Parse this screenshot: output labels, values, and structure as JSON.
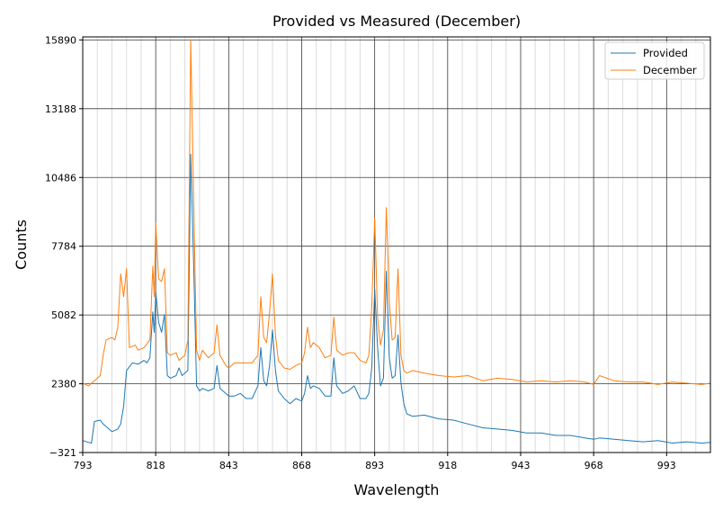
{
  "chart_data": {
    "type": "line",
    "title": "Provided vs Measured (December)",
    "xlabel": "Wavelength",
    "ylabel": "Counts",
    "xlim": [
      793,
      1008
    ],
    "ylim": [
      -321,
      16010
    ],
    "xticks": [
      793,
      818,
      843,
      868,
      893,
      918,
      943,
      968,
      993
    ],
    "yticks": [
      -321,
      2380,
      5082,
      7784,
      10486,
      13188,
      15890
    ],
    "xtick_labels": [
      "793",
      "818",
      "843",
      "868",
      "893",
      "918",
      "943",
      "968",
      "993"
    ],
    "ytick_labels": [
      "−321",
      "2380",
      "5082",
      "7784",
      "10486",
      "13188",
      "15890"
    ],
    "grid": true,
    "legend_position": "top-right",
    "series": [
      {
        "name": "Provided",
        "color": "#1f77b4",
        "points": [
          [
            793,
            150
          ],
          [
            795,
            80
          ],
          [
            796,
            50
          ],
          [
            797,
            900
          ],
          [
            799,
            950
          ],
          [
            800,
            800
          ],
          [
            801,
            700
          ],
          [
            803,
            500
          ],
          [
            805,
            600
          ],
          [
            806,
            800
          ],
          [
            807,
            1500
          ],
          [
            808,
            2900
          ],
          [
            810,
            3200
          ],
          [
            812,
            3150
          ],
          [
            814,
            3300
          ],
          [
            815,
            3200
          ],
          [
            816,
            3400
          ],
          [
            817,
            5200
          ],
          [
            817.5,
            4400
          ],
          [
            818,
            6000
          ],
          [
            819,
            4800
          ],
          [
            820,
            4400
          ],
          [
            821,
            5100
          ],
          [
            822,
            2700
          ],
          [
            823,
            2600
          ],
          [
            825,
            2700
          ],
          [
            826,
            3000
          ],
          [
            827,
            2700
          ],
          [
            829,
            2900
          ],
          [
            830,
            11400
          ],
          [
            831,
            7000
          ],
          [
            832,
            2300
          ],
          [
            833,
            2100
          ],
          [
            834,
            2200
          ],
          [
            836,
            2100
          ],
          [
            838,
            2200
          ],
          [
            839,
            3100
          ],
          [
            840,
            2200
          ],
          [
            842,
            2000
          ],
          [
            843,
            1900
          ],
          [
            845,
            1900
          ],
          [
            847,
            2000
          ],
          [
            849,
            1800
          ],
          [
            851,
            1800
          ],
          [
            853,
            2300
          ],
          [
            854,
            3800
          ],
          [
            855,
            2500
          ],
          [
            856,
            2300
          ],
          [
            857,
            3100
          ],
          [
            858,
            4500
          ],
          [
            859,
            2900
          ],
          [
            860,
            2100
          ],
          [
            862,
            1800
          ],
          [
            864,
            1600
          ],
          [
            866,
            1800
          ],
          [
            868,
            1700
          ],
          [
            869,
            2000
          ],
          [
            870,
            2700
          ],
          [
            871,
            2200
          ],
          [
            872,
            2300
          ],
          [
            874,
            2200
          ],
          [
            876,
            1900
          ],
          [
            878,
            1900
          ],
          [
            879,
            3400
          ],
          [
            880,
            2300
          ],
          [
            882,
            2000
          ],
          [
            884,
            2100
          ],
          [
            886,
            2300
          ],
          [
            888,
            1800
          ],
          [
            890,
            1800
          ],
          [
            891,
            2000
          ],
          [
            892,
            3000
          ],
          [
            893,
            6100
          ],
          [
            894,
            3800
          ],
          [
            895,
            2300
          ],
          [
            896,
            2600
          ],
          [
            897,
            6800
          ],
          [
            898,
            3400
          ],
          [
            899,
            2600
          ],
          [
            900,
            2700
          ],
          [
            901,
            4300
          ],
          [
            902,
            2400
          ],
          [
            903,
            1600
          ],
          [
            904,
            1200
          ],
          [
            906,
            1100
          ],
          [
            910,
            1150
          ],
          [
            915,
            1000
          ],
          [
            920,
            950
          ],
          [
            925,
            800
          ],
          [
            930,
            650
          ],
          [
            935,
            600
          ],
          [
            940,
            550
          ],
          [
            945,
            450
          ],
          [
            950,
            450
          ],
          [
            955,
            350
          ],
          [
            960,
            350
          ],
          [
            965,
            250
          ],
          [
            968,
            200
          ],
          [
            970,
            250
          ],
          [
            975,
            200
          ],
          [
            980,
            150
          ],
          [
            985,
            100
          ],
          [
            990,
            150
          ],
          [
            995,
            50
          ],
          [
            1000,
            100
          ],
          [
            1005,
            50
          ],
          [
            1008,
            80
          ]
        ]
      },
      {
        "name": "December",
        "color": "#ff7f0e",
        "points": [
          [
            793,
            2400
          ],
          [
            795,
            2300
          ],
          [
            797,
            2500
          ],
          [
            799,
            2700
          ],
          [
            800,
            3500
          ],
          [
            801,
            4100
          ],
          [
            803,
            4200
          ],
          [
            804,
            4100
          ],
          [
            805,
            4600
          ],
          [
            806,
            6700
          ],
          [
            807,
            5800
          ],
          [
            808,
            6900
          ],
          [
            809,
            3800
          ],
          [
            811,
            3900
          ],
          [
            812,
            3700
          ],
          [
            814,
            3800
          ],
          [
            816,
            4100
          ],
          [
            817,
            7000
          ],
          [
            817.5,
            5800
          ],
          [
            818,
            8700
          ],
          [
            819,
            6500
          ],
          [
            820,
            6400
          ],
          [
            821,
            6900
          ],
          [
            822,
            3600
          ],
          [
            823,
            3500
          ],
          [
            825,
            3600
          ],
          [
            826,
            3300
          ],
          [
            828,
            3500
          ],
          [
            829,
            4100
          ],
          [
            830,
            15900
          ],
          [
            831,
            9500
          ],
          [
            832,
            3700
          ],
          [
            833,
            3300
          ],
          [
            834,
            3700
          ],
          [
            836,
            3400
          ],
          [
            838,
            3600
          ],
          [
            839,
            4700
          ],
          [
            840,
            3500
          ],
          [
            842,
            3100
          ],
          [
            843,
            3000
          ],
          [
            845,
            3200
          ],
          [
            847,
            3200
          ],
          [
            849,
            3200
          ],
          [
            851,
            3200
          ],
          [
            853,
            3500
          ],
          [
            854,
            5800
          ],
          [
            855,
            4200
          ],
          [
            856,
            4000
          ],
          [
            857,
            5200
          ],
          [
            858,
            6700
          ],
          [
            859,
            4300
          ],
          [
            860,
            3300
          ],
          [
            862,
            3000
          ],
          [
            864,
            2950
          ],
          [
            866,
            3100
          ],
          [
            868,
            3200
          ],
          [
            869,
            3600
          ],
          [
            870,
            4600
          ],
          [
            871,
            3800
          ],
          [
            872,
            4000
          ],
          [
            874,
            3800
          ],
          [
            876,
            3400
          ],
          [
            878,
            3500
          ],
          [
            879,
            5000
          ],
          [
            880,
            3700
          ],
          [
            882,
            3500
          ],
          [
            884,
            3600
          ],
          [
            886,
            3600
          ],
          [
            888,
            3300
          ],
          [
            890,
            3200
          ],
          [
            891,
            3500
          ],
          [
            892,
            5400
          ],
          [
            893,
            8900
          ],
          [
            894,
            5000
          ],
          [
            895,
            3900
          ],
          [
            896,
            4500
          ],
          [
            897,
            9300
          ],
          [
            898,
            5600
          ],
          [
            899,
            4100
          ],
          [
            900,
            4200
          ],
          [
            901,
            6900
          ],
          [
            902,
            3500
          ],
          [
            903,
            2900
          ],
          [
            904,
            2800
          ],
          [
            906,
            2900
          ],
          [
            910,
            2800
          ],
          [
            915,
            2700
          ],
          [
            920,
            2650
          ],
          [
            925,
            2700
          ],
          [
            930,
            2500
          ],
          [
            935,
            2600
          ],
          [
            940,
            2550
          ],
          [
            945,
            2450
          ],
          [
            950,
            2500
          ],
          [
            955,
            2450
          ],
          [
            960,
            2500
          ],
          [
            965,
            2450
          ],
          [
            968,
            2350
          ],
          [
            970,
            2700
          ],
          [
            975,
            2500
          ],
          [
            980,
            2450
          ],
          [
            985,
            2450
          ],
          [
            990,
            2350
          ],
          [
            995,
            2450
          ],
          [
            1000,
            2400
          ],
          [
            1005,
            2350
          ],
          [
            1008,
            2400
          ]
        ]
      }
    ]
  }
}
